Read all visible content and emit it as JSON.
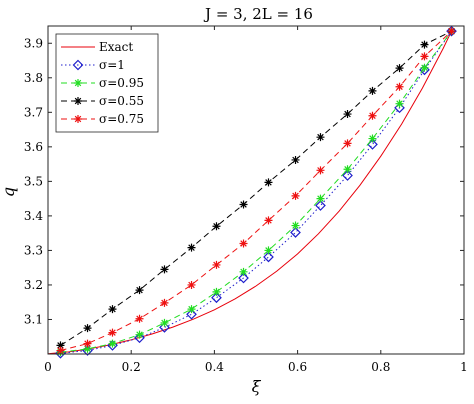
{
  "chart_data": {
    "type": "line",
    "title": "J = 3, 2L = 16",
    "xlabel": "ξ",
    "ylabel": "q",
    "xlim": [
      0,
      1
    ],
    "ylim": [
      3.0,
      3.95
    ],
    "xticks": [
      "0",
      "0.2",
      "0.4",
      "0.6",
      "0.8",
      "1"
    ],
    "yticks": [
      "3.1",
      "3.2",
      "3.3",
      "3.4",
      "3.5",
      "3.6",
      "3.7",
      "3.8",
      "3.9"
    ],
    "grid": false,
    "legend_position": "top-left",
    "series": [
      {
        "name": "Exact",
        "color": "#e8000b",
        "line_style": "solid",
        "marker": "none",
        "x": [
          0.0,
          0.05,
          0.1,
          0.15,
          0.2,
          0.25,
          0.3,
          0.35,
          0.4,
          0.45,
          0.5,
          0.55,
          0.6,
          0.65,
          0.7,
          0.75,
          0.8,
          0.85,
          0.9,
          0.95,
          0.97
        ],
        "y": [
          3.001,
          3.006,
          3.015,
          3.027,
          3.041,
          3.058,
          3.078,
          3.101,
          3.128,
          3.16,
          3.197,
          3.24,
          3.29,
          3.348,
          3.414,
          3.489,
          3.573,
          3.666,
          3.77,
          3.885,
          3.935
        ]
      },
      {
        "name": "σ=1",
        "color": "#1f1fcc",
        "line_style": "dotted",
        "marker": "diamond",
        "x": [
          0.03,
          0.095,
          0.155,
          0.22,
          0.28,
          0.345,
          0.405,
          0.47,
          0.53,
          0.595,
          0.655,
          0.72,
          0.78,
          0.845,
          0.905,
          0.97
        ],
        "y": [
          3.002,
          3.01,
          3.025,
          3.047,
          3.077,
          3.115,
          3.163,
          3.22,
          3.281,
          3.352,
          3.43,
          3.517,
          3.607,
          3.713,
          3.823,
          3.935
        ]
      },
      {
        "name": "σ=0.95",
        "color": "#22dd22",
        "line_style": "dashed",
        "marker": "asterisk",
        "x": [
          0.03,
          0.095,
          0.155,
          0.22,
          0.28,
          0.345,
          0.405,
          0.47,
          0.53,
          0.595,
          0.655,
          0.72,
          0.78,
          0.845,
          0.905,
          0.97
        ],
        "y": [
          3.005,
          3.015,
          3.03,
          3.056,
          3.09,
          3.13,
          3.18,
          3.238,
          3.3,
          3.372,
          3.45,
          3.535,
          3.624,
          3.725,
          3.829,
          3.935
        ]
      },
      {
        "name": "σ=0.55",
        "color": "#000000",
        "line_style": "dashed",
        "marker": "asterisk",
        "x": [
          0.03,
          0.095,
          0.155,
          0.22,
          0.28,
          0.345,
          0.405,
          0.47,
          0.53,
          0.595,
          0.655,
          0.72,
          0.78,
          0.845,
          0.905,
          0.97
        ],
        "y": [
          3.025,
          3.075,
          3.13,
          3.185,
          3.245,
          3.308,
          3.37,
          3.433,
          3.497,
          3.562,
          3.628,
          3.695,
          3.762,
          3.828,
          3.896,
          3.935
        ]
      },
      {
        "name": "σ=0.75",
        "color": "#ee1111",
        "line_style": "dashed",
        "marker": "asterisk",
        "x": [
          0.03,
          0.095,
          0.155,
          0.22,
          0.28,
          0.345,
          0.405,
          0.47,
          0.53,
          0.595,
          0.655,
          0.72,
          0.78,
          0.845,
          0.905,
          0.97
        ],
        "y": [
          3.01,
          3.03,
          3.062,
          3.102,
          3.148,
          3.2,
          3.258,
          3.32,
          3.387,
          3.458,
          3.532,
          3.61,
          3.69,
          3.774,
          3.862,
          3.935
        ]
      }
    ]
  }
}
